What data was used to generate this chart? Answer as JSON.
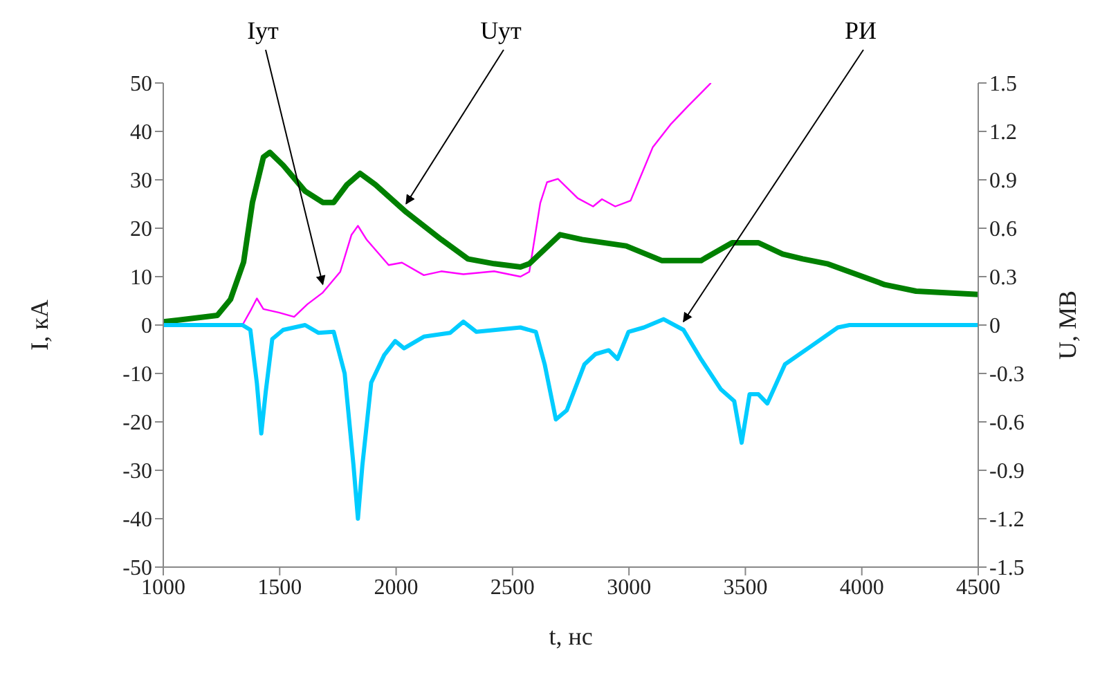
{
  "chart_data": {
    "type": "line",
    "xlabel": "t, нс",
    "ylabel": "I, кА",
    "y2label": "U, МВ",
    "xlim": [
      1000,
      4500
    ],
    "xticks": [
      1000,
      1500,
      2000,
      2500,
      3000,
      3500,
      4000,
      4500
    ],
    "ylim": [
      -50,
      50
    ],
    "yticks": [
      -50,
      -40,
      -30,
      -20,
      -10,
      0,
      10,
      20,
      30,
      40,
      50
    ],
    "y2lim": [
      -1.5,
      1.5
    ],
    "y2ticks": [
      -1.5,
      -1.2,
      -0.9,
      -0.6,
      -0.3,
      0,
      0.3,
      0.6,
      0.9,
      1.2,
      1.5
    ],
    "grid": false,
    "legend": false,
    "marker": "none",
    "line_style": "solid",
    "series": [
      {
        "name": "Iут",
        "color": "#ff00ff",
        "x": [
          1000,
          1340,
          1374,
          1402,
          1430,
          1496,
          1562,
          1619,
          1685,
          1760,
          1808,
          1836,
          1874,
          1968,
          2025,
          2119,
          2194,
          2289,
          2421,
          2534,
          2572,
          2619,
          2648,
          2695,
          2780,
          2846,
          2884,
          2941,
          3007,
          3102,
          3178,
          3253,
          3352
        ],
        "values": [
          0,
          0,
          2.9,
          5.5,
          3.3,
          2.6,
          1.7,
          4.3,
          6.7,
          11,
          18.6,
          20.5,
          17.6,
          12.4,
          12.9,
          10.3,
          11.1,
          10.5,
          11.1,
          10,
          11,
          25.2,
          29.5,
          30.2,
          26.2,
          24.5,
          26,
          24.5,
          25.7,
          36.7,
          41.4,
          45.2,
          50
        ]
      },
      {
        "name": "Uут",
        "color": "#008000",
        "axis": "y2",
        "x": [
          1000,
          1232,
          1289,
          1345,
          1383,
          1430,
          1458,
          1515,
          1609,
          1685,
          1732,
          1789,
          1845,
          1911,
          2043,
          2194,
          2308,
          2421,
          2534,
          2572,
          2704,
          2799,
          2988,
          3140,
          3310,
          3443,
          3556,
          3660,
          3746,
          3851,
          3947,
          4099,
          4233,
          4500
        ],
        "values": [
          0.02,
          0.06,
          0.16,
          0.39,
          0.76,
          1.04,
          1.07,
          0.99,
          0.83,
          0.76,
          0.76,
          0.87,
          0.94,
          0.87,
          0.7,
          0.53,
          0.41,
          0.38,
          0.36,
          0.38,
          0.56,
          0.53,
          0.49,
          0.4,
          0.4,
          0.51,
          0.51,
          0.44,
          0.41,
          0.38,
          0.33,
          0.25,
          0.21,
          0.19
        ]
      },
      {
        "name": "РИ",
        "color": "#00ccff",
        "x": [
          1000,
          1340,
          1374,
          1402,
          1421,
          1440,
          1468,
          1515,
          1609,
          1666,
          1732,
          1779,
          1817,
          1836,
          1855,
          1893,
          1949,
          1996,
          2034,
          2119,
          2232,
          2289,
          2345,
          2534,
          2600,
          2638,
          2686,
          2733,
          2809,
          2856,
          2913,
          2951,
          2998,
          3064,
          3149,
          3234,
          3310,
          3395,
          3452,
          3484,
          3518,
          3556,
          3594,
          3670,
          3784,
          3897,
          3947,
          4500
        ],
        "values": [
          0,
          0,
          -1,
          -12,
          -22.4,
          -13.8,
          -2.9,
          -1,
          0,
          -1.6,
          -1.4,
          -10,
          -29,
          -40,
          -29,
          -11.9,
          -6.2,
          -3.3,
          -4.8,
          -2.4,
          -1.6,
          0.7,
          -1.4,
          -0.5,
          -1.4,
          -8.1,
          -19.5,
          -17.6,
          -8.1,
          -6,
          -5.2,
          -7,
          -1.4,
          -0.5,
          1.2,
          -1,
          -7.1,
          -13.3,
          -15.7,
          -24.3,
          -14.3,
          -14.3,
          -16.2,
          -8.1,
          -4.3,
          -0.5,
          0,
          0
        ]
      }
    ]
  }
}
